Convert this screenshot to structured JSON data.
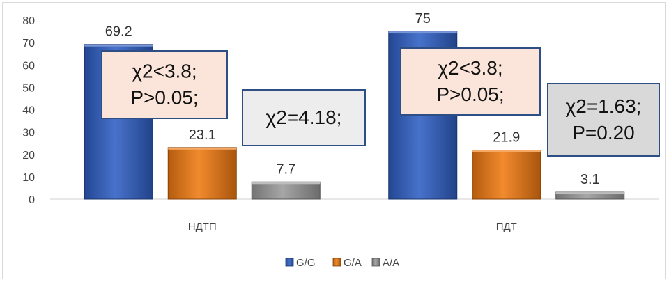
{
  "chart_data": {
    "type": "bar",
    "categories": [
      "НДТП",
      "ПДТ"
    ],
    "series": [
      {
        "name": "G/G",
        "values": [
          69.2,
          75
        ],
        "color": "#2f5fc4"
      },
      {
        "name": "G/A",
        "values": [
          23.1,
          21.9
        ],
        "color": "#f07a12"
      },
      {
        "name": "A/A",
        "values": [
          7.7,
          3.1
        ],
        "color": "#9a9a9a"
      }
    ],
    "data_labels": [
      "69.2",
      "23.1",
      "7.7",
      "75",
      "21.9",
      "3.1"
    ],
    "y_ticks": [
      "0",
      "10",
      "20",
      "30",
      "40",
      "50",
      "60",
      "70",
      "80"
    ],
    "ylim": [
      0,
      80
    ],
    "grid": false,
    "legend_position": "bottom",
    "annotations": [
      {
        "lines": [
          "χ2<3.8;",
          "P>0.05;"
        ],
        "fill": "#fbe5da"
      },
      {
        "lines": [
          "χ2=4.18;"
        ],
        "fill": "#ededed"
      },
      {
        "lines": [
          "χ2<3.8;",
          "P>0.05;"
        ],
        "fill": "#fbe5da"
      },
      {
        "lines": [
          "χ2=1.63;",
          "P=0.20"
        ],
        "fill": "#d9d9d9"
      }
    ]
  }
}
